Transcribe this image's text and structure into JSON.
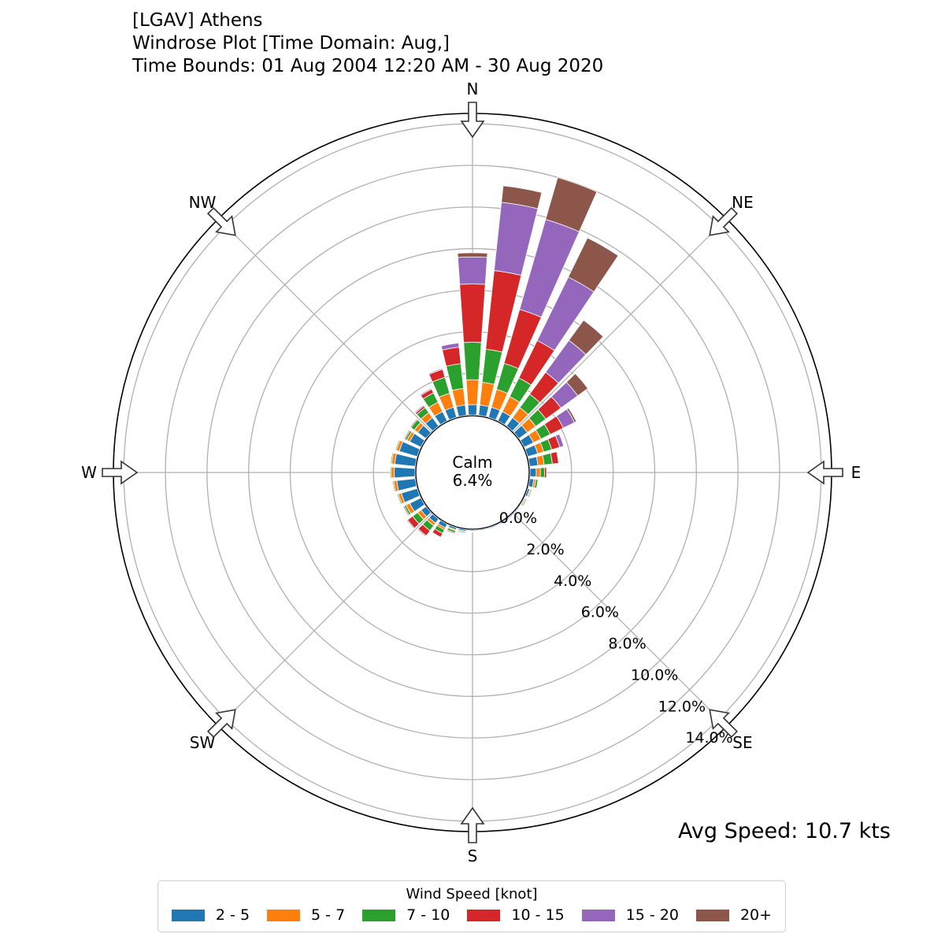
{
  "title": {
    "line1": "[LGAV] Athens",
    "line2": "Windrose Plot [Time Domain: Aug,]",
    "line3": "Time Bounds: 01 Aug 2004 12:20 AM - 30 Aug 2020"
  },
  "avg_speed": "Avg Speed: 10.7 kts",
  "calm": {
    "label": "Calm",
    "value": "6.4%"
  },
  "chart_data": {
    "type": "windrose",
    "radial_ticks": [
      "0.0%",
      "2.0%",
      "4.0%",
      "6.0%",
      "8.0%",
      "10.0%",
      "12.0%",
      "14.0%"
    ],
    "radial_values": [
      0,
      2,
      4,
      6,
      8,
      10,
      12,
      14
    ],
    "rmax": 14.5,
    "calm_percent": 6.4,
    "compass": [
      "N",
      "NE",
      "E",
      "SE",
      "S",
      "SW",
      "W",
      "NW"
    ],
    "legend_title": "Wind Speed [knot]",
    "bins": [
      {
        "name": "2 - 5",
        "color": "#1f77b4"
      },
      {
        "name": "5 - 7",
        "color": "#ff7f0e"
      },
      {
        "name": "7 - 10",
        "color": "#2ca02c"
      },
      {
        "name": "10 - 15",
        "color": "#d62728"
      },
      {
        "name": "15 - 20",
        "color": "#9467bd"
      },
      {
        "name": "20+",
        "color": "#8c564b"
      }
    ],
    "directions": [
      0,
      10,
      20,
      30,
      40,
      50,
      60,
      70,
      80,
      90,
      100,
      110,
      120,
      130,
      140,
      150,
      160,
      170,
      180,
      190,
      200,
      210,
      220,
      230,
      240,
      250,
      260,
      270,
      280,
      290,
      300,
      310,
      320,
      330,
      340,
      350
    ],
    "values": [
      [
        0.5,
        1.2,
        1.8,
        2.8,
        1.3,
        0.2
      ],
      [
        0.5,
        1.1,
        1.6,
        3.8,
        3.3,
        0.8
      ],
      [
        0.5,
        0.9,
        1.3,
        2.7,
        4.5,
        2.1
      ],
      [
        0.5,
        0.8,
        1.0,
        2.0,
        3.4,
        2.1
      ],
      [
        0.5,
        0.6,
        0.8,
        1.3,
        1.9,
        1.2
      ],
      [
        0.5,
        0.5,
        0.6,
        0.9,
        1.0,
        0.6
      ],
      [
        0.5,
        0.4,
        0.5,
        0.7,
        0.6,
        0.1
      ],
      [
        0.5,
        0.3,
        0.4,
        0.4,
        0.2,
        0.0
      ],
      [
        0.4,
        0.3,
        0.4,
        0.3,
        0.0,
        0.0
      ],
      [
        0.3,
        0.2,
        0.2,
        0.1,
        0.0,
        0.0
      ],
      [
        0.2,
        0.1,
        0.1,
        0.0,
        0.0,
        0.0
      ],
      [
        0.1,
        0.05,
        0.05,
        0.0,
        0.0,
        0.0
      ],
      [
        0.05,
        0.05,
        0.05,
        0.0,
        0.0,
        0.0
      ],
      [
        0.05,
        0.03,
        0.03,
        0.0,
        0.0,
        0.0
      ],
      [
        0.05,
        0.02,
        0.02,
        0.0,
        0.0,
        0.0
      ],
      [
        0.05,
        0.02,
        0.02,
        0.0,
        0.0,
        0.0
      ],
      [
        0.05,
        0.02,
        0.02,
        0.0,
        0.0,
        0.0
      ],
      [
        0.05,
        0.02,
        0.02,
        0.0,
        0.0,
        0.0
      ],
      [
        0.05,
        0.03,
        0.03,
        0.0,
        0.0,
        0.0
      ],
      [
        0.08,
        0.03,
        0.05,
        0.0,
        0.0,
        0.0
      ],
      [
        0.1,
        0.05,
        0.1,
        0.05,
        0.0,
        0.0
      ],
      [
        0.2,
        0.1,
        0.2,
        0.2,
        0.0,
        0.0
      ],
      [
        0.25,
        0.15,
        0.3,
        0.3,
        0.05,
        0.0
      ],
      [
        0.3,
        0.2,
        0.3,
        0.3,
        0.05,
        0.0
      ],
      [
        0.6,
        0.2,
        0.1,
        0.05,
        0.0,
        0.0
      ],
      [
        0.8,
        0.15,
        0.05,
        0.0,
        0.0,
        0.0
      ],
      [
        0.9,
        0.15,
        0.05,
        0.0,
        0.0,
        0.0
      ],
      [
        1.0,
        0.15,
        0.05,
        0.0,
        0.0,
        0.0
      ],
      [
        1.0,
        0.15,
        0.05,
        0.0,
        0.0,
        0.0
      ],
      [
        0.9,
        0.15,
        0.05,
        0.0,
        0.0,
        0.0
      ],
      [
        0.6,
        0.15,
        0.1,
        0.05,
        0.0,
        0.0
      ],
      [
        0.5,
        0.2,
        0.2,
        0.05,
        0.0,
        0.0
      ],
      [
        0.5,
        0.3,
        0.3,
        0.1,
        0.05,
        0.0
      ],
      [
        0.5,
        0.5,
        0.5,
        0.2,
        0.05,
        0.0
      ],
      [
        0.5,
        0.7,
        0.8,
        0.4,
        0.05,
        0.0
      ],
      [
        0.5,
        0.8,
        1.2,
        0.8,
        0.2,
        0.0
      ]
    ]
  }
}
